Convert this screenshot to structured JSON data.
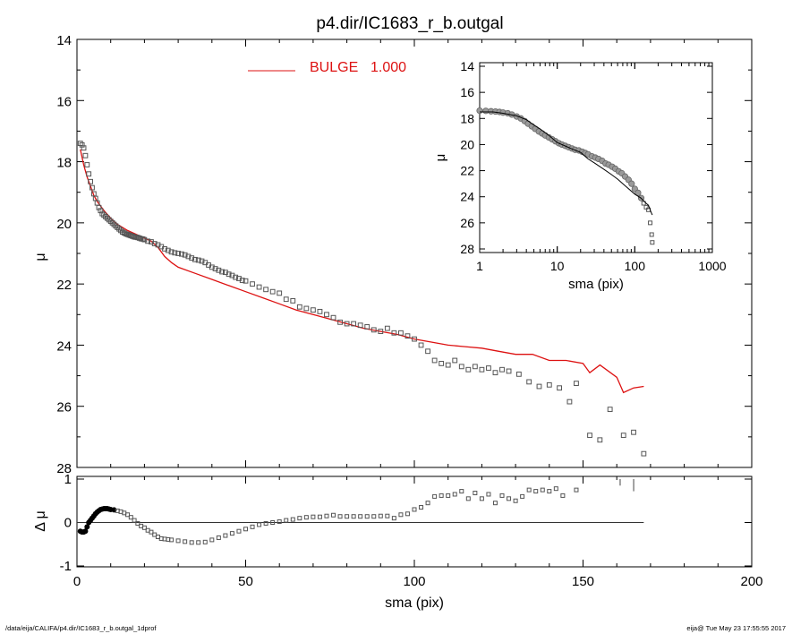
{
  "title": "p4.dir/IC1683_r_b.outgal",
  "footer": {
    "left": "/data/eija/CALIFA/p4.dir/IC1683_r_b.outgal_1dprof",
    "right": "eija@  Tue May 23 17:55:55 2017"
  },
  "colors": {
    "model": "#dd1111",
    "data": "#555555",
    "axis": "#000000"
  },
  "chart_data": [
    {
      "type": "scatter",
      "panel": "main",
      "ylabel": "μ",
      "xlim": [
        0,
        200
      ],
      "ylim": [
        28,
        14
      ],
      "xticks": [
        0,
        50,
        100,
        150,
        200
      ],
      "yticks": [
        14,
        16,
        18,
        20,
        22,
        24,
        26,
        28
      ],
      "legend": {
        "label": "BULGE",
        "value": "1.000",
        "placement": "top-center"
      },
      "series": [
        {
          "name": "BULGE",
          "kind": "line",
          "x": [
            1,
            2,
            3,
            4,
            5,
            6,
            8,
            10,
            12,
            15,
            18,
            20,
            22,
            24,
            26,
            28,
            30,
            35,
            40,
            45,
            50,
            55,
            60,
            65,
            70,
            75,
            80,
            85,
            90,
            95,
            100,
            105,
            110,
            115,
            120,
            125,
            130,
            135,
            140,
            145,
            150,
            152,
            155,
            160,
            162,
            165,
            168
          ],
          "y": [
            17.6,
            18.1,
            18.5,
            18.8,
            19.1,
            19.3,
            19.6,
            19.85,
            20.05,
            20.25,
            20.4,
            20.5,
            20.6,
            20.8,
            21.1,
            21.3,
            21.45,
            21.65,
            21.85,
            22.05,
            22.25,
            22.45,
            22.65,
            22.85,
            23.0,
            23.15,
            23.3,
            23.45,
            23.55,
            23.65,
            23.8,
            23.9,
            24.0,
            24.05,
            24.1,
            24.2,
            24.3,
            24.3,
            24.5,
            24.5,
            24.6,
            24.9,
            24.65,
            25.05,
            25.55,
            25.4,
            25.35
          ]
        },
        {
          "name": "data",
          "kind": "points",
          "x": [
            1,
            1.5,
            2,
            2.5,
            3,
            3.5,
            4,
            4.5,
            5,
            5.5,
            6,
            6.5,
            7,
            7.5,
            8,
            8.5,
            9,
            9.5,
            10,
            10.5,
            11,
            11.5,
            12,
            12.5,
            13,
            13.5,
            14,
            14.5,
            15,
            15.5,
            16,
            16.5,
            17,
            17.5,
            18,
            18.5,
            19,
            19.5,
            20,
            21,
            22,
            23,
            24,
            25,
            26,
            27,
            28,
            29,
            30,
            31,
            32,
            33,
            34,
            35,
            36,
            37,
            38,
            39,
            40,
            41,
            42,
            43,
            44,
            45,
            46,
            47,
            48,
            49,
            50,
            52,
            54,
            56,
            58,
            60,
            62,
            64,
            66,
            68,
            70,
            72,
            74,
            76,
            78,
            80,
            82,
            84,
            86,
            88,
            90,
            92,
            94,
            96,
            98,
            100,
            102,
            104,
            106,
            108,
            110,
            112,
            114,
            116,
            118,
            120,
            122,
            124,
            126,
            128,
            131,
            134,
            137,
            140,
            143,
            146,
            148,
            152,
            155,
            158,
            162,
            165,
            168
          ],
          "y": [
            17.4,
            17.45,
            17.55,
            17.8,
            18.1,
            18.4,
            18.65,
            18.85,
            19.05,
            19.2,
            19.35,
            19.5,
            19.6,
            19.7,
            19.75,
            19.8,
            19.85,
            19.9,
            19.95,
            20.0,
            20.05,
            20.1,
            20.15,
            20.2,
            20.25,
            20.3,
            20.33,
            20.36,
            20.38,
            20.4,
            20.42,
            20.44,
            20.46,
            20.47,
            20.48,
            20.5,
            20.52,
            20.53,
            20.55,
            20.6,
            20.62,
            20.68,
            20.72,
            20.78,
            20.85,
            20.9,
            20.95,
            20.98,
            21.0,
            21.02,
            21.05,
            21.1,
            21.15,
            21.2,
            21.22,
            21.25,
            21.3,
            21.38,
            21.45,
            21.5,
            21.55,
            21.6,
            21.62,
            21.68,
            21.72,
            21.78,
            21.82,
            21.88,
            21.9,
            22.0,
            22.1,
            22.18,
            22.25,
            22.3,
            22.5,
            22.55,
            22.75,
            22.8,
            22.85,
            22.9,
            23.0,
            23.1,
            23.25,
            23.3,
            23.3,
            23.35,
            23.4,
            23.5,
            23.55,
            23.45,
            23.6,
            23.6,
            23.7,
            23.8,
            24.0,
            24.2,
            24.5,
            24.6,
            24.65,
            24.5,
            24.7,
            24.8,
            24.7,
            24.8,
            24.75,
            24.9,
            24.8,
            24.85,
            24.95,
            25.2,
            25.35,
            25.3,
            25.4,
            25.85,
            25.25,
            26.95,
            27.1,
            26.1,
            26.95,
            26.85,
            27.55
          ]
        }
      ]
    },
    {
      "type": "scatter",
      "panel": "residual",
      "xlabel": "sma (pix)",
      "ylabel": "Δ μ",
      "xlim": [
        0,
        200
      ],
      "ylim": [
        -1,
        1
      ],
      "yticks": [
        -1,
        0,
        1
      ],
      "zero_line": [
        0,
        168
      ],
      "series": [
        {
          "name": "residual",
          "kind": "points",
          "x": [
            1,
            1.5,
            2,
            2.5,
            3,
            3.5,
            4,
            4.5,
            5,
            5.5,
            6,
            6.5,
            7,
            7.5,
            8,
            8.5,
            9,
            9.5,
            10,
            11,
            12,
            13,
            14,
            15,
            16,
            17,
            18,
            19,
            20,
            21,
            22,
            23,
            24,
            25,
            26,
            27,
            28,
            30,
            32,
            34,
            36,
            38,
            40,
            42,
            44,
            46,
            48,
            50,
            52,
            54,
            56,
            58,
            60,
            62,
            64,
            66,
            68,
            70,
            72,
            74,
            76,
            78,
            80,
            82,
            84,
            86,
            88,
            90,
            92,
            94,
            96,
            98,
            100,
            102,
            104,
            106,
            108,
            110,
            112,
            114,
            116,
            118,
            120,
            122,
            124,
            126,
            128,
            130,
            132,
            134,
            136,
            138,
            140,
            142,
            144,
            148
          ],
          "y": [
            -0.2,
            -0.22,
            -0.22,
            -0.2,
            -0.1,
            0.0,
            0.05,
            0.1,
            0.15,
            0.2,
            0.24,
            0.27,
            0.3,
            0.31,
            0.32,
            0.32,
            0.32,
            0.31,
            0.3,
            0.29,
            0.27,
            0.25,
            0.22,
            0.18,
            0.12,
            0.05,
            -0.02,
            -0.08,
            -0.12,
            -0.18,
            -0.22,
            -0.28,
            -0.33,
            -0.37,
            -0.38,
            -0.39,
            -0.4,
            -0.42,
            -0.44,
            -0.46,
            -0.46,
            -0.45,
            -0.4,
            -0.35,
            -0.3,
            -0.25,
            -0.2,
            -0.15,
            -0.1,
            -0.05,
            -0.02,
            0.0,
            0.02,
            0.05,
            0.07,
            0.1,
            0.12,
            0.13,
            0.13,
            0.15,
            0.17,
            0.14,
            0.14,
            0.14,
            0.14,
            0.14,
            0.14,
            0.15,
            0.15,
            0.1,
            0.18,
            0.2,
            0.3,
            0.35,
            0.45,
            0.6,
            0.62,
            0.62,
            0.65,
            0.72,
            0.55,
            0.68,
            0.55,
            0.65,
            0.45,
            0.62,
            0.55,
            0.5,
            0.6,
            0.75,
            0.72,
            0.75,
            0.72,
            0.78,
            0.62,
            0.75
          ]
        }
      ],
      "error_spikes": [
        {
          "x": 161,
          "y1": 0.85,
          "y2": 1.0
        },
        {
          "x": 165,
          "y1": 0.72,
          "y2": 1.0
        }
      ]
    },
    {
      "type": "scatter",
      "panel": "inset",
      "xlabel": "sma (pix)",
      "ylabel": "μ",
      "xscale": "log",
      "xlim": [
        1,
        1000
      ],
      "ylim": [
        28,
        14
      ],
      "xticks": [
        1,
        10,
        100,
        1000
      ],
      "yticks": [
        14,
        16,
        18,
        20,
        22,
        24,
        26,
        28
      ],
      "series": [
        {
          "name": "model",
          "kind": "line",
          "x": [
            1,
            1.5,
            2,
            3,
            4,
            5,
            6,
            8,
            10,
            15,
            20,
            25,
            30,
            40,
            50,
            60,
            70,
            80,
            100,
            120,
            140,
            150,
            160,
            168
          ],
          "y": [
            17.5,
            17.5,
            17.6,
            17.8,
            18.1,
            18.5,
            18.8,
            19.35,
            19.85,
            20.3,
            20.6,
            21.1,
            21.4,
            21.9,
            22.3,
            22.65,
            23.0,
            23.3,
            23.8,
            24.1,
            24.5,
            24.65,
            25.1,
            25.4
          ]
        },
        {
          "name": "data",
          "kind": "points",
          "x": [
            1,
            1.2,
            1.4,
            1.6,
            1.8,
            2,
            2.3,
            2.6,
            3,
            3.4,
            3.8,
            4.2,
            4.7,
            5.2,
            5.8,
            6.4,
            7,
            7.8,
            8.6,
            9.5,
            10.5,
            11.5,
            12.7,
            14,
            15.5,
            17,
            19,
            21,
            23,
            25,
            28,
            31,
            34,
            38,
            42,
            46,
            51,
            56,
            62,
            68,
            75,
            83,
            91,
            100,
            110,
            121,
            130,
            140,
            150,
            158,
            165,
            168
          ],
          "y": [
            17.4,
            17.42,
            17.45,
            17.47,
            17.5,
            17.55,
            17.6,
            17.7,
            17.85,
            18.0,
            18.2,
            18.4,
            18.6,
            18.8,
            19.0,
            19.15,
            19.3,
            19.45,
            19.6,
            19.75,
            19.9,
            20.0,
            20.1,
            20.2,
            20.3,
            20.4,
            20.45,
            20.55,
            20.65,
            20.75,
            20.9,
            21.0,
            21.1,
            21.25,
            21.45,
            21.55,
            21.7,
            21.85,
            22.05,
            22.2,
            22.45,
            22.7,
            23.0,
            23.4,
            23.7,
            24.1,
            24.5,
            24.8,
            25.0,
            26.0,
            26.9,
            27.5
          ]
        }
      ]
    }
  ]
}
